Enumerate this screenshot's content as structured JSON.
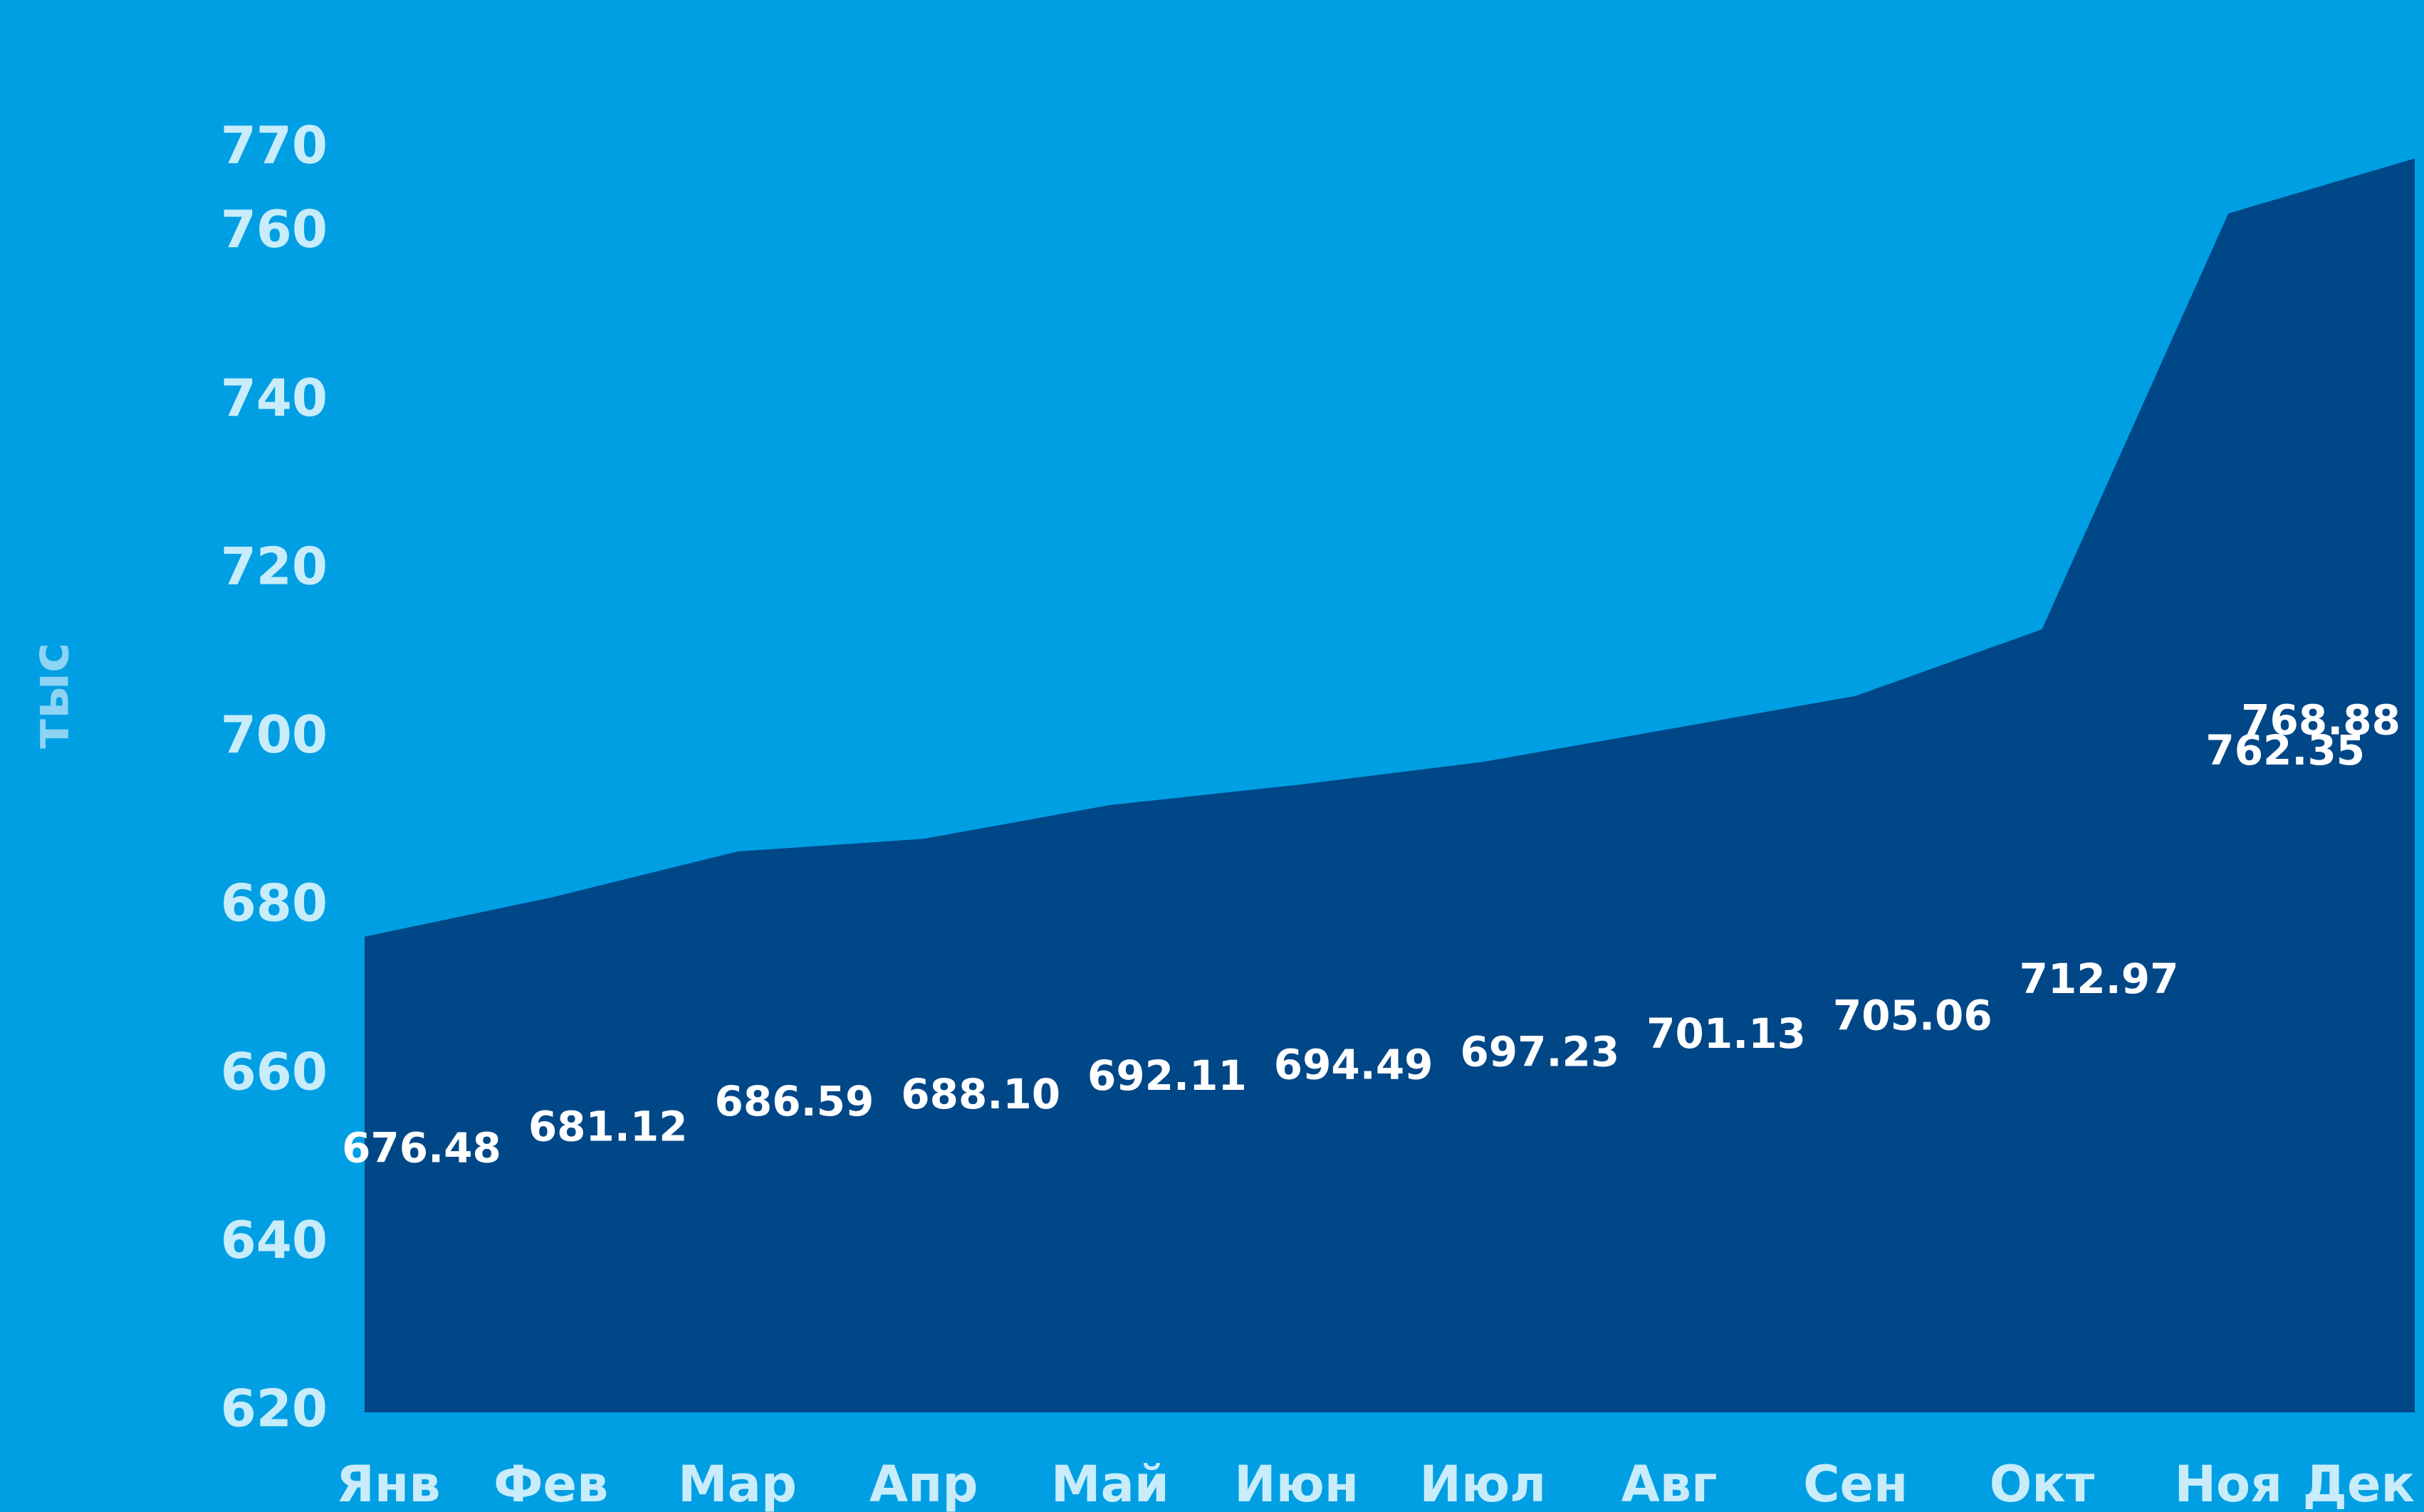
{
  "chart_data": {
    "type": "area",
    "y_label": "тыс",
    "categories": [
      "Янв",
      "Фев",
      "Мар",
      "Апр",
      "Май",
      "Июн",
      "Июл",
      "Авг",
      "Сен",
      "Окт",
      "Ноя",
      "Дек"
    ],
    "values": [
      676.48,
      681.12,
      686.59,
      688.1,
      692.11,
      694.49,
      697.23,
      701.13,
      705.06,
      712.97,
      762.35,
      768.88
    ],
    "value_labels": [
      "676.48",
      "681.12",
      "686.59",
      "688.10",
      "692.11",
      "694.49",
      "697.23",
      "701.13",
      "705.06",
      "712.97",
      "762.35",
      "768.88"
    ],
    "color": "#004788",
    "ylim": [
      620,
      780
    ],
    "yticks": [
      620,
      640,
      660,
      680,
      700,
      720,
      740,
      760,
      770
    ],
    "grid": false
  }
}
